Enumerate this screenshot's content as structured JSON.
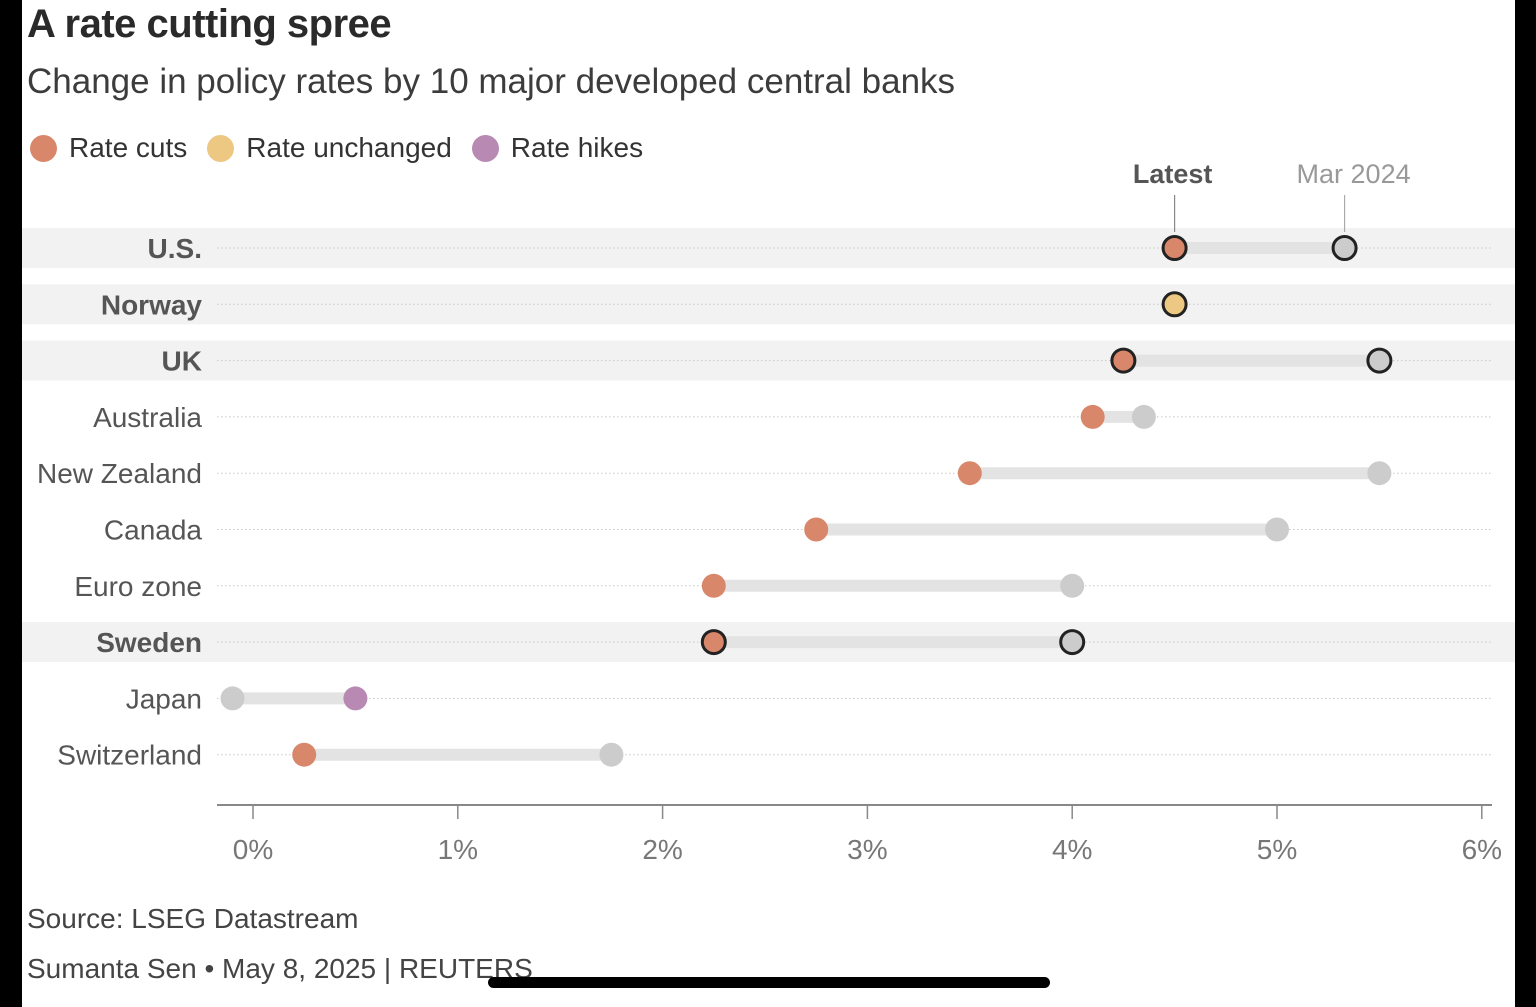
{
  "title": "A rate cutting spree",
  "subtitle": "Change in policy rates by 10 major developed central banks",
  "legend": [
    {
      "label": "Rate cuts",
      "color": "#d9876b"
    },
    {
      "label": "Rate unchanged",
      "color": "#ecc882"
    },
    {
      "label": "Rate hikes",
      "color": "#b88ab3"
    }
  ],
  "colors": {
    "cut": "#d9876b",
    "unchanged": "#ecc882",
    "hike": "#b88ab3",
    "previous": "#cccccc",
    "highlight_band": "#f2f2f2",
    "connector": "#e3e3e3"
  },
  "source": "Source: LSEG Datastream",
  "byline": "Sumanta Sen • May 8, 2025 | REUTERS",
  "chart_data": {
    "type": "dumbbell",
    "title": "A rate cutting spree",
    "subtitle": "Change in policy rates by 10 major developed central banks",
    "series_labels": {
      "latest": "Latest",
      "previous": "Mar 2024"
    },
    "xlim": [
      -0.17,
      6.0
    ],
    "x_ticks": [
      0,
      1,
      2,
      3,
      4,
      5,
      6
    ],
    "x_tick_labels": [
      "0%",
      "1%",
      "2%",
      "3%",
      "4%",
      "5%",
      "6%"
    ],
    "grid": false,
    "legend_position": "top-left",
    "rows": [
      {
        "country": "U.S.",
        "latest": 4.5,
        "previous": 5.33,
        "change": "cut",
        "highlight": true
      },
      {
        "country": "Norway",
        "latest": 4.5,
        "previous": 4.5,
        "change": "unchanged",
        "highlight": true
      },
      {
        "country": "UK",
        "latest": 4.25,
        "previous": 5.5,
        "change": "cut",
        "highlight": true
      },
      {
        "country": "Australia",
        "latest": 4.1,
        "previous": 4.35,
        "change": "cut",
        "highlight": false
      },
      {
        "country": "New Zealand",
        "latest": 3.5,
        "previous": 5.5,
        "change": "cut",
        "highlight": false
      },
      {
        "country": "Canada",
        "latest": 2.75,
        "previous": 5.0,
        "change": "cut",
        "highlight": false
      },
      {
        "country": "Euro zone",
        "latest": 2.25,
        "previous": 4.0,
        "change": "cut",
        "highlight": false
      },
      {
        "country": "Sweden",
        "latest": 2.25,
        "previous": 4.0,
        "change": "cut",
        "highlight": true
      },
      {
        "country": "Japan",
        "latest": 0.5,
        "previous": -0.1,
        "change": "hike",
        "highlight": false
      },
      {
        "country": "Switzerland",
        "latest": 0.25,
        "previous": 1.75,
        "change": "cut",
        "highlight": false
      }
    ]
  }
}
